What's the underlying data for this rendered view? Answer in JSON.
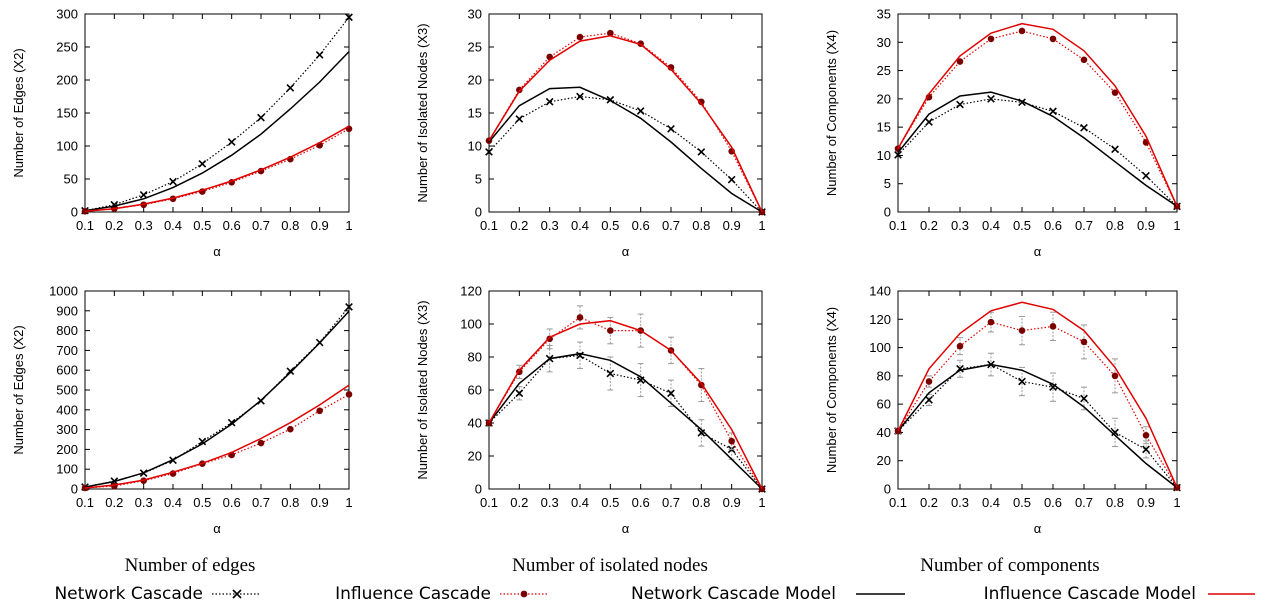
{
  "captions": [
    "Number of edges",
    "Number of isolated nodes",
    "Number of components"
  ],
  "legend": {
    "items": [
      {
        "key": "network_cascade",
        "label": "Network Cascade"
      },
      {
        "key": "influence_cascade",
        "label": "Influence Cascade"
      },
      {
        "key": "network_model",
        "label": "Network Cascade Model"
      },
      {
        "key": "influence_model",
        "label": "Influence Cascade Model"
      }
    ]
  },
  "colors": {
    "network": "#000000",
    "influence_points": "#7a0000",
    "influence_line": "#e00000",
    "errorbar": "#999999"
  },
  "chart_data": [
    {
      "type": "line",
      "xlabel": "α",
      "ylabel": "Number of Edges (X2)",
      "x": [
        0.1,
        0.2,
        0.3,
        0.4,
        0.5,
        0.6,
        0.7,
        0.8,
        0.9,
        1
      ],
      "xticks": [
        "0.1",
        "0.2",
        "0.3",
        "0.4",
        "0.5",
        "0.6",
        "0.7",
        "0.8",
        "0.9",
        "1"
      ],
      "ylim": [
        0,
        300
      ],
      "yticks": [
        0,
        50,
        100,
        150,
        200,
        250,
        300
      ],
      "series": [
        {
          "name": "Network Cascade",
          "values": [
            2,
            11,
            26,
            46,
            73,
            106,
            143,
            188,
            238,
            295
          ]
        },
        {
          "name": "Influence Cascade",
          "values": [
            1,
            5,
            11,
            20,
            31,
            45,
            62,
            80,
            101,
            126
          ]
        },
        {
          "name": "Network Cascade Model",
          "values": [
            2,
            9,
            20,
            37,
            59,
            86,
            118,
            156,
            197,
            243
          ]
        },
        {
          "name": "Influence Cascade Model",
          "values": [
            1,
            5,
            12,
            21,
            33,
            47,
            64,
            83,
            105,
            130
          ]
        }
      ]
    },
    {
      "type": "line",
      "xlabel": "α",
      "ylabel": "Number of Isolated Nodes (X3)",
      "x": [
        0.1,
        0.2,
        0.3,
        0.4,
        0.5,
        0.6,
        0.7,
        0.8,
        0.9,
        1
      ],
      "xticks": [
        "0.1",
        "0.2",
        "0.3",
        "0.4",
        "0.5",
        "0.6",
        "0.7",
        "0.8",
        "0.9",
        "1"
      ],
      "ylim": [
        0,
        30
      ],
      "yticks": [
        0,
        5,
        10,
        15,
        20,
        25,
        30
      ],
      "series": [
        {
          "name": "Network Cascade",
          "values": [
            9.1,
            14.1,
            16.7,
            17.5,
            17.0,
            15.3,
            12.6,
            9.1,
            4.9,
            0
          ]
        },
        {
          "name": "Influence Cascade",
          "values": [
            10.8,
            18.5,
            23.5,
            26.5,
            27.1,
            25.5,
            21.9,
            16.7,
            9.2,
            0
          ]
        },
        {
          "name": "Network Cascade Model",
          "values": [
            10.6,
            16.1,
            18.7,
            18.9,
            16.9,
            14.2,
            10.6,
            6.6,
            2.8,
            0
          ]
        },
        {
          "name": "Influence Cascade Model",
          "values": [
            10.8,
            18.3,
            23.0,
            25.9,
            26.7,
            25.4,
            21.6,
            16.4,
            9.8,
            0
          ]
        }
      ]
    },
    {
      "type": "line",
      "xlabel": "α",
      "ylabel": "Number of Components (X4)",
      "x": [
        0.1,
        0.2,
        0.3,
        0.4,
        0.5,
        0.6,
        0.7,
        0.8,
        0.9,
        1
      ],
      "xticks": [
        "0.1",
        "0.2",
        "0.3",
        "0.4",
        "0.5",
        "0.6",
        "0.7",
        "0.8",
        "0.9",
        "1"
      ],
      "ylim": [
        0,
        35
      ],
      "yticks": [
        0,
        5,
        10,
        15,
        20,
        25,
        30,
        35
      ],
      "series": [
        {
          "name": "Network Cascade",
          "values": [
            10.1,
            15.9,
            19.0,
            20.0,
            19.4,
            17.8,
            14.9,
            11.1,
            6.4,
            1.0
          ]
        },
        {
          "name": "Influence Cascade",
          "values": [
            11.2,
            20.3,
            26.6,
            30.6,
            32.0,
            30.6,
            26.9,
            21.1,
            12.3,
            1.0
          ]
        },
        {
          "name": "Network Cascade Model",
          "values": [
            10.5,
            17.3,
            20.5,
            21.2,
            19.6,
            16.9,
            13.1,
            8.9,
            4.7,
            1.0
          ]
        },
        {
          "name": "Influence Cascade Model",
          "values": [
            11.2,
            20.9,
            27.6,
            31.6,
            33.3,
            32.3,
            28.5,
            22.3,
            13.4,
            1.0
          ]
        }
      ]
    },
    {
      "type": "line",
      "xlabel": "α",
      "ylabel": "Number of Edges (X2)",
      "x": [
        0.1,
        0.2,
        0.3,
        0.4,
        0.5,
        0.6,
        0.7,
        0.8,
        0.9,
        1
      ],
      "xticks": [
        "0.1",
        "0.2",
        "0.3",
        "0.4",
        "0.5",
        "0.6",
        "0.7",
        "0.8",
        "0.9",
        "1"
      ],
      "ylim": [
        0,
        1000
      ],
      "yticks": [
        0,
        100,
        200,
        300,
        400,
        500,
        600,
        700,
        800,
        900,
        1000
      ],
      "series": [
        {
          "name": "Network Cascade",
          "values": [
            10,
            40,
            80,
            145,
            240,
            335,
            445,
            595,
            740,
            920
          ]
        },
        {
          "name": "Influence Cascade",
          "values": [
            5,
            15,
            42,
            78,
            128,
            172,
            232,
            302,
            395,
            478
          ]
        },
        {
          "name": "Network Cascade Model",
          "values": [
            10,
            38,
            82,
            148,
            228,
            328,
            448,
            588,
            738,
            898
          ]
        },
        {
          "name": "Influence Cascade Model",
          "values": [
            5,
            20,
            45,
            85,
            130,
            185,
            255,
            335,
            425,
            525
          ]
        }
      ]
    },
    {
      "type": "line",
      "xlabel": "α",
      "ylabel": "Number of Isolated Nodes (X3)",
      "x": [
        0.1,
        0.2,
        0.3,
        0.4,
        0.5,
        0.6,
        0.7,
        0.8,
        0.9,
        1
      ],
      "xticks": [
        "0.1",
        "0.2",
        "0.3",
        "0.4",
        "0.5",
        "0.6",
        "0.7",
        "0.8",
        "0.9",
        "1"
      ],
      "ylim": [
        0,
        120
      ],
      "yticks": [
        0,
        20,
        40,
        60,
        80,
        100,
        120
      ],
      "series": [
        {
          "name": "Network Cascade",
          "values": [
            40,
            58,
            79,
            81,
            70,
            66,
            58,
            34,
            24,
            0
          ],
          "errors": [
            2,
            4,
            8,
            8,
            10,
            10,
            8,
            8,
            6,
            0
          ]
        },
        {
          "name": "Influence Cascade",
          "values": [
            40,
            71,
            91,
            104,
            96,
            96,
            84,
            63,
            29,
            0
          ],
          "errors": [
            2,
            4,
            6,
            7,
            8,
            10,
            8,
            10,
            5,
            0
          ]
        },
        {
          "name": "Network Cascade Model",
          "values": [
            40,
            64,
            79,
            82,
            78,
            68,
            52,
            36,
            18,
            0
          ]
        },
        {
          "name": "Influence Cascade Model",
          "values": [
            40,
            72,
            92,
            100,
            102,
            96,
            84,
            64,
            36,
            0
          ]
        }
      ]
    },
    {
      "type": "line",
      "xlabel": "α",
      "ylabel": "Number of Components (X4)",
      "x": [
        0.1,
        0.2,
        0.3,
        0.4,
        0.5,
        0.6,
        0.7,
        0.8,
        0.9,
        1
      ],
      "xticks": [
        "0.1",
        "0.2",
        "0.3",
        "0.4",
        "0.5",
        "0.6",
        "0.7",
        "0.8",
        "0.9",
        "1"
      ],
      "ylim": [
        0,
        140
      ],
      "yticks": [
        0,
        20,
        40,
        60,
        80,
        100,
        120,
        140
      ],
      "series": [
        {
          "name": "Network Cascade",
          "values": [
            41,
            63,
            85,
            88,
            76,
            72,
            64,
            40,
            28,
            1
          ],
          "errors": [
            2,
            4,
            6,
            8,
            10,
            10,
            8,
            10,
            6,
            0
          ]
        },
        {
          "name": "Influence Cascade",
          "values": [
            41,
            76,
            101,
            118,
            112,
            115,
            104,
            80,
            38,
            1
          ],
          "errors": [
            2,
            4,
            6,
            7,
            10,
            10,
            12,
            12,
            6,
            0
          ]
        },
        {
          "name": "Network Cascade Model",
          "values": [
            41,
            68,
            84,
            88,
            84,
            74,
            58,
            38,
            18,
            1
          ]
        },
        {
          "name": "Influence Cascade Model",
          "values": [
            41,
            85,
            110,
            126,
            132,
            127,
            112,
            86,
            50,
            1
          ]
        }
      ]
    }
  ]
}
